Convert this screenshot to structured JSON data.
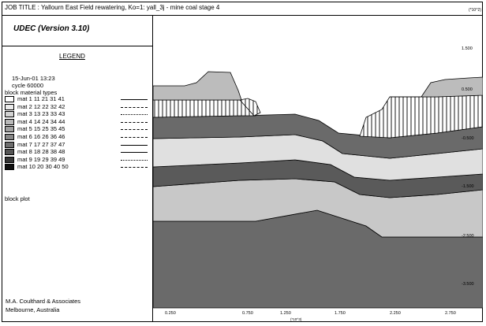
{
  "header": {
    "job_title": "JOB TITLE :  Yallourn East Field rewatering, Ko=1: yall_3j - mine coal stage 4",
    "y_exponent": "(*10^2)"
  },
  "app": {
    "version": "UDEC (Version 3.10)"
  },
  "legend": {
    "title": "LEGEND",
    "date": "15-Jun-01  13:23",
    "cycle": "cycle   60000",
    "block_material_label": "block material types",
    "materials": [
      {
        "label": "mat   1 11 21 31 41",
        "color": "#ffffff",
        "line": "solid"
      },
      {
        "label": "mat   2 12 22 32 42",
        "color": "#ebebeb",
        "line": "dashed"
      },
      {
        "label": "mat   3 13 23 33 43",
        "color": "#d2d2d2",
        "line": "dotted"
      },
      {
        "label": "mat   4 14 24 34 44",
        "color": "#b9b9b9",
        "line": "dashed"
      },
      {
        "label": "mat   5 15 25 35 45",
        "color": "#a0a0a0",
        "line": "dashdot"
      },
      {
        "label": "mat   6 16 26 36 46",
        "color": "#878787",
        "line": "dashdot"
      },
      {
        "label": "mat   7 17 27 37 47",
        "color": "#6e6e6e",
        "line": "solid"
      },
      {
        "label": "mat   8 18 28 38 48",
        "color": "#555555",
        "line": "solid"
      },
      {
        "label": "mat   9 19 29 39 49",
        "color": "#353535",
        "line": "dotted"
      },
      {
        "label": "mat  10 20 30 40 50",
        "color": "#111111",
        "line": "dashed"
      }
    ],
    "block_plot_label": "block plot"
  },
  "footer": {
    "company": "M.A. Coulthard & Associates",
    "location": "Melbourne,  Australia"
  },
  "axes": {
    "x_ticks": [
      "0.250",
      "0.750",
      "1.250",
      "1.750",
      "2.250",
      "2.750"
    ],
    "x_exponent": "(*10^3)",
    "y_ticks": [
      "1.500",
      "0.500",
      "-0.500",
      "-1.500",
      "-2.500",
      "-3.500"
    ]
  },
  "colors": {
    "layer_light": "#e0e0e0",
    "layer_mid": "#c8c8c8",
    "layer_dark": "#6a6a6a",
    "layer_darker": "#5a5a5a",
    "coal_hatch": "#ffffff",
    "overburden": "#bcbcbc"
  }
}
